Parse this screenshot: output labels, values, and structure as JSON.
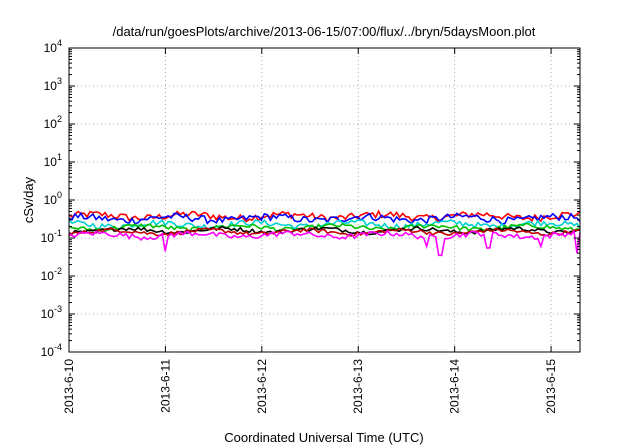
{
  "chart_data": {
    "type": "line",
    "title": "/data/run/goesPlots/archive/2013-06-15/07:00/flux/../bryn/5daysMoon.plot",
    "xlabel": "Coordinated Universal Time (UTC)",
    "ylabel": "cSv/day",
    "yscale": "log",
    "ylim": [
      0.0001,
      10000
    ],
    "x_range_days": [
      0,
      5.3
    ],
    "y_ticks": [
      {
        "base": "10",
        "exp": "-4"
      },
      {
        "base": "10",
        "exp": "-3"
      },
      {
        "base": "10",
        "exp": "-2"
      },
      {
        "base": "10",
        "exp": "-1"
      },
      {
        "base": "10",
        "exp": "0"
      },
      {
        "base": "10",
        "exp": "1"
      },
      {
        "base": "10",
        "exp": "2"
      },
      {
        "base": "10",
        "exp": "3"
      },
      {
        "base": "10",
        "exp": "4"
      }
    ],
    "x_ticks": [
      "2013-6-10",
      "2013-6-11",
      "2013-6-12",
      "2013-6-13",
      "2013-6-14",
      "2013-6-15"
    ],
    "grid": true,
    "series": [
      {
        "color": "#ff0000",
        "level": 0.38,
        "amp": 0.22
      },
      {
        "color": "#0000ff",
        "level": 0.33,
        "amp": 0.22
      },
      {
        "color": "#00d0d0",
        "level": 0.23,
        "amp": 0.18
      },
      {
        "color": "#00c000",
        "level": 0.19,
        "amp": 0.14
      },
      {
        "color": "#000000",
        "level": 0.16,
        "amp": 0.12
      },
      {
        "color": "#c00000",
        "level": 0.145,
        "amp": 0.12
      },
      {
        "color": "#ff00ff",
        "level": 0.12,
        "amp": 0.16,
        "dips": [
          [
            1.0,
            0.045
          ],
          [
            3.7,
            0.06
          ],
          [
            3.85,
            0.035
          ],
          [
            4.35,
            0.055
          ],
          [
            4.9,
            0.06
          ],
          [
            5.27,
            0.04
          ]
        ]
      }
    ]
  }
}
